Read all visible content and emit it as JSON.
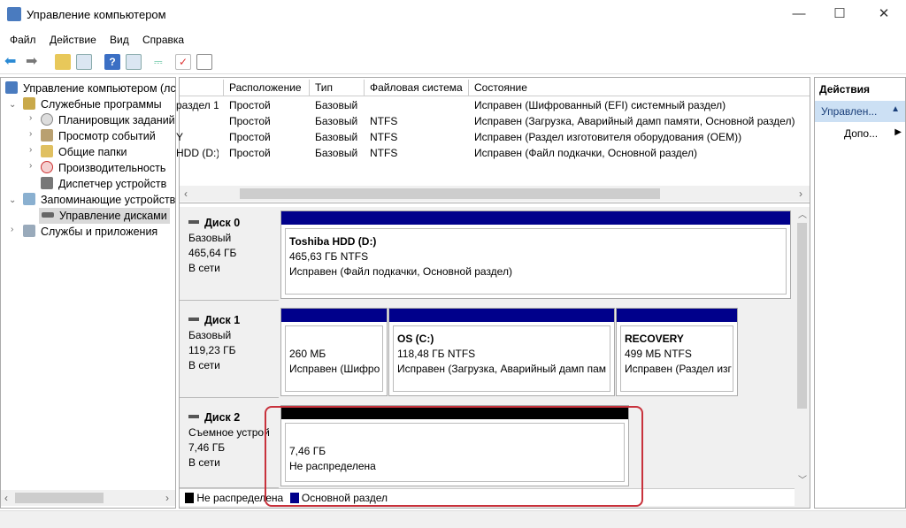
{
  "window": {
    "title": "Управление компьютером",
    "minimize": "—",
    "maximize": "☐",
    "close": "✕"
  },
  "menu": [
    "Файл",
    "Действие",
    "Вид",
    "Справка"
  ],
  "toolbar": [
    "back-icon",
    "forward-icon",
    "up-folder-icon",
    "show-hide-tree-icon",
    "help-icon",
    "show-hide-actions-icon",
    "connect-icon",
    "check-icon",
    "console-icon"
  ],
  "tree": {
    "root": "Управление компьютером (лс",
    "items": [
      {
        "label": "Служебные программы",
        "level": 1,
        "expanded": true,
        "icon": "tools-icon"
      },
      {
        "label": "Планировщик заданий",
        "level": 2,
        "icon": "clock-icon"
      },
      {
        "label": "Просмотр событий",
        "level": 2,
        "icon": "event-viewer-icon"
      },
      {
        "label": "Общие папки",
        "level": 2,
        "icon": "shared-folder-icon"
      },
      {
        "label": "Производительность",
        "level": 2,
        "icon": "performance-icon"
      },
      {
        "label": "Диспетчер устройств",
        "level": 2,
        "icon": "device-manager-icon"
      },
      {
        "label": "Запоминающие устройств",
        "level": 1,
        "expanded": true,
        "icon": "storage-icon"
      },
      {
        "label": "Управление дисками",
        "level": 2,
        "selected": true,
        "icon": "disk-management-icon"
      },
      {
        "label": "Службы и приложения",
        "level": 1,
        "expanded": false,
        "icon": "services-icon"
      }
    ]
  },
  "volume_list": {
    "columns": [
      "",
      "Расположение",
      "Тип",
      "Файловая система",
      "Состояние"
    ],
    "rows": [
      [
        "раздел 1)",
        "Простой",
        "Базовый",
        "",
        "Исправен (Шифрованный (EFI) системный раздел)"
      ],
      [
        "",
        "Простой",
        "Базовый",
        "NTFS",
        "Исправен (Загрузка, Аварийный дамп памяти, Основной раздел)"
      ],
      [
        "Y",
        "Простой",
        "Базовый",
        "NTFS",
        "Исправен (Раздел изготовителя оборудования (OEM))"
      ],
      [
        "HDD (D:)",
        "Простой",
        "Базовый",
        "NTFS",
        "Исправен (Файл подкачки, Основной раздел)"
      ]
    ]
  },
  "disks": [
    {
      "name": "Диск 0",
      "type": "Базовый",
      "size": "465,64 ГБ",
      "status": "В сети",
      "partitions": [
        {
          "title": "Toshiba HDD  (D:)",
          "size": "465,63 ГБ NTFS",
          "state": "Исправен (Файл подкачки, Основной раздел)",
          "kind": "primary"
        }
      ]
    },
    {
      "name": "Диск 1",
      "type": "Базовый",
      "size": "119,23 ГБ",
      "status": "В сети",
      "partitions": [
        {
          "title": "",
          "size": "260 МБ",
          "state": "Исправен (Шифро",
          "kind": "primary"
        },
        {
          "title": "OS  (C:)",
          "size": "118,48 ГБ NTFS",
          "state": "Исправен (Загрузка, Аварийный дамп пам",
          "kind": "primary"
        },
        {
          "title": "RECOVERY",
          "size": "499 МБ NTFS",
          "state": "Исправен (Раздел изг",
          "kind": "primary"
        }
      ]
    },
    {
      "name": "Диск 2",
      "type": "Съемное устрой",
      "size": "7,46 ГБ",
      "status": "В сети",
      "partitions": [
        {
          "title": "",
          "size": "7,46 ГБ",
          "state": "Не распределена",
          "kind": "unallocated"
        }
      ]
    }
  ],
  "legend": [
    {
      "label": "Не распределена",
      "color": "#000000"
    },
    {
      "label": "Основной раздел",
      "color": "#00008b"
    }
  ],
  "actions": {
    "title": "Действия",
    "group": "Управлен...",
    "more": "Допо..."
  },
  "colors": {
    "primary": "#00008b",
    "unallocated": "#000000",
    "highlight": "#c8323c",
    "selection": "#cce0f4"
  }
}
